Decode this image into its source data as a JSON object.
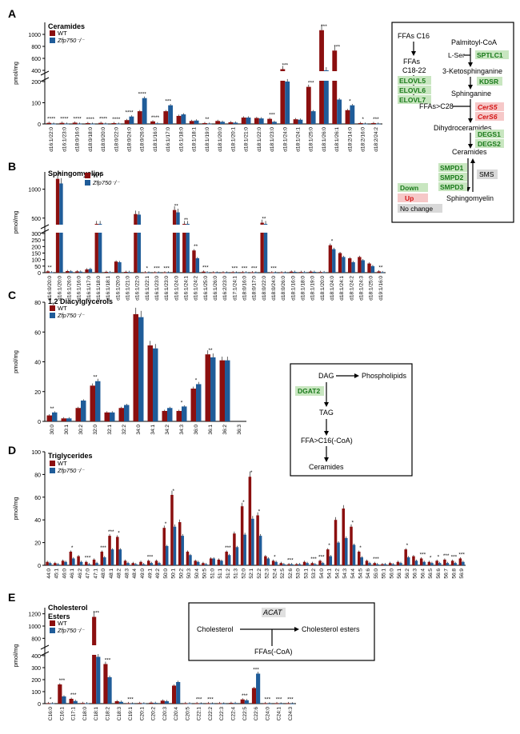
{
  "colors": {
    "wt": "#8b0f0f",
    "ko": "#1f5c99",
    "down_bg": "#c8e6c0",
    "down_fg": "#1a7a1a",
    "up_bg": "#f6c8c8",
    "up_fg": "#d41414",
    "nochange_bg": "#d9d9d9",
    "acat_bg": "#e0e0e0"
  },
  "panels": [
    {
      "letter": "A",
      "title": "Ceramides",
      "ylabel": "pmol/mg",
      "legend": [
        "WT",
        "Zfp750⁻/⁻"
      ],
      "ticks_top": [
        "1000",
        "800",
        "600",
        "400"
      ],
      "ticks_bot": [
        "200",
        "100",
        "0"
      ],
      "chart_data": {
        "type": "bar",
        "ybreak": [
          200,
          400
        ],
        "ylim": [
          0,
          1200
        ],
        "categories": [
          "d16:1/22:0",
          "d16:1/23:0",
          "d18:0/16:0",
          "d18:0/18:0",
          "d18:0/20:0",
          "d18:0/22:0",
          "d18:0/24:0",
          "d18:0/26:0",
          "d18:1/16:0",
          "d16:1/17:0",
          "d16:1/18:0",
          "d18:1/18:1",
          "d18:1/19:0",
          "d18:1/20:0",
          "d18:1/20:1",
          "d18:1/21:0",
          "d18:1/22:0",
          "d18:1/23:0",
          "d18:1/24:0",
          "d18:1/24:1",
          "d18:1/25:0",
          "d18:1/26:0",
          "d18:1/26:1",
          "d18:2/14:0",
          "d18:2/16:0",
          "d18:2/24:2"
        ],
        "series": [
          {
            "name": "WT",
            "values": [
              5,
              5,
              6,
              4,
              5,
              4,
              18,
              60,
              12,
              60,
              38,
              14,
              4,
              14,
              8,
              30,
              28,
              24,
              420,
              22,
              175,
              1070,
              730,
              65,
              4,
              4
            ]
          },
          {
            "name": "Zfp750⁻/⁻",
            "values": [
              1,
              1,
              1,
              1,
              1,
              1,
              35,
              122,
              3,
              88,
              45,
              16,
              1,
              10,
              6,
              30,
              26,
              10,
              200,
              20,
              60,
              380,
              115,
              88,
              1,
              1
            ]
          }
        ],
        "annotations": [
          "****",
          "****",
          "****",
          "****",
          "****",
          "****",
          "****",
          "****",
          "****",
          "***",
          "",
          "",
          "**",
          "",
          "",
          "",
          "",
          "***",
          "***",
          "",
          "***",
          "***",
          "***",
          "*",
          "*",
          "***"
        ]
      }
    },
    {
      "letter": "B",
      "title": "Sphingomyelins",
      "ylabel": "pmol/mg",
      "legend": [
        "WT",
        "Zfp750⁻/⁻"
      ],
      "ticks_top": [
        "1000",
        "500"
      ],
      "ticks_bot": [
        "300",
        "250",
        "200",
        "150",
        "100",
        "50",
        "0"
      ],
      "chart_data": {
        "type": "bar",
        "ybreak": [
          300,
          400
        ],
        "ylim": [
          0,
          1300
        ],
        "categories": [
          "d16:0/20:0",
          "d16:1/20:0",
          "d16:1/26:0",
          "d16:1/16:0",
          "d16:1/17:0",
          "d16:1/18:0",
          "d16:1/18:1",
          "d16:1/20:0",
          "d16:1/21:0",
          "d16:1/22:0",
          "d16:1/22:1",
          "d16:1/23:0",
          "d16:1/23:0",
          "d16:1/24:0",
          "d16:1/24:1",
          "d16:1/24:2",
          "d16:1/25:0",
          "d16:1/26:0",
          "d16:2/23:0",
          "d17:1/24:1",
          "d18:0/16:0",
          "d18:0/17:0",
          "d18:0/22:0",
          "d18:0/24:0",
          "d18:0/26:0",
          "d18:1/16:0",
          "d18:1/18:0",
          "d18:1/19:0",
          "d18:1/20:0",
          "d18:1/24:0",
          "d18:1/24:1",
          "d18:1/24:2",
          "d18:1/24:3",
          "d18:1/25:0",
          "d19:1/16:0"
        ],
        "series": [
          {
            "name": "WT",
            "values": [
              10,
              1180,
              12,
              10,
              25,
              370,
              6,
              85,
              6,
              570,
              3,
              2,
              2,
              640,
              350,
              170,
              8,
              2,
              2,
              4,
              4,
              3,
              420,
              3,
              2,
              8,
              5,
              8,
              5,
              210,
              150,
              110,
              120,
              70,
              10
            ]
          },
          {
            "name": "Zfp750⁻/⁻",
            "values": [
              3,
              1100,
              10,
              8,
              28,
              390,
              4,
              80,
              5,
              560,
              1,
              1,
              1,
              600,
              320,
              110,
              3,
              1,
              1,
              1,
              2,
              1,
              390,
              1,
              1,
              6,
              4,
              6,
              4,
              180,
              120,
              80,
              95,
              50,
              4
            ]
          }
        ],
        "annotations": [
          "**",
          "*",
          "",
          "",
          "",
          "",
          "",
          "",
          "",
          "",
          "*",
          "***",
          "***",
          "**",
          "**",
          "**",
          "***",
          "",
          "",
          "***",
          "***",
          "***",
          "**",
          "***",
          "",
          "",
          "",
          "",
          "",
          "*",
          "",
          "",
          "",
          "",
          "**"
        ]
      }
    },
    {
      "letter": "C",
      "title": "1,2 Diacylglycerols",
      "ylabel": "pmol/mg",
      "legend": [
        "WT",
        "Zfp750⁻/⁻"
      ],
      "ticks": [
        "80",
        "60",
        "40",
        "20",
        "0"
      ],
      "chart_data": {
        "type": "bar",
        "ylim": [
          0,
          80
        ],
        "categories": [
          "30:0",
          "30:1",
          "30:2",
          "32:0",
          "32:1",
          "32:2",
          "34:0",
          "34:1",
          "34:2",
          "34:3",
          "36:0",
          "36:1",
          "36:2",
          "36:3"
        ],
        "series": [
          {
            "name": "WT",
            "values": [
              4,
              2,
              9,
              24,
              6,
              9,
              72,
              51,
              7,
              7,
              22,
              45,
              41,
              0
            ]
          },
          {
            "name": "Zfp750⁻/⁻",
            "values": [
              6,
              2,
              14,
              27,
              6,
              11,
              70,
              49,
              9,
              10,
              25,
              43,
              41,
              0
            ]
          }
        ],
        "annotations": [
          "**",
          "",
          "",
          "**",
          "",
          "",
          "",
          "",
          "",
          "*",
          "*",
          "**",
          "",
          ""
        ]
      }
    },
    {
      "letter": "D",
      "title": "Triglycerides",
      "ylabel": "pmol/mg",
      "legend": [
        "WT",
        "Zfp750⁻/⁻"
      ],
      "ticks": [
        "100",
        "80",
        "60",
        "40",
        "20",
        "0"
      ],
      "chart_data": {
        "type": "bar",
        "ylim": [
          0,
          100
        ],
        "categories": [
          "44:0",
          "45:1",
          "46:0",
          "46:1",
          "46:2",
          "47:0",
          "47:1",
          "48:0",
          "48:1",
          "48:2",
          "48:3",
          "48:4",
          "49:0",
          "49:1",
          "49:2",
          "50:0",
          "50:1",
          "50:2",
          "50:3",
          "50:4",
          "50:5",
          "51:0",
          "51:1",
          "51:2",
          "51:3",
          "52:0",
          "52:1",
          "52:2",
          "52:3",
          "52:4",
          "52:5",
          "52:6",
          "53:0",
          "53:1",
          "53:2",
          "54:0",
          "54:1",
          "54:2",
          "54:3",
          "54:4",
          "54:5",
          "54:6",
          "55:0",
          "55:1",
          "56:0",
          "56:1",
          "56:2",
          "56:3",
          "56:4",
          "56:5",
          "56:6",
          "56:7",
          "56:8",
          "56:9"
        ],
        "series": [
          {
            "name": "WT",
            "values": [
              3,
              2,
              4,
              12,
              8,
              3,
              5,
              12,
              26,
              25,
              4,
              2,
              3,
              4,
              4,
              33,
              62,
              38,
              12,
              4,
              2,
              6,
              5,
              12,
              28,
              52,
              78,
              44,
              8,
              4,
              2,
              1,
              1,
              3,
              2,
              4,
              14,
              40,
              50,
              34,
              12,
              4,
              2,
              1,
              2,
              3,
              14,
              8,
              6,
              3,
              4,
              5,
              4,
              6
            ]
          },
          {
            "name": "Zfp750⁻/⁻",
            "values": [
              2,
              1,
              3,
              6,
              3,
              1,
              2,
              7,
              14,
              14,
              2,
              1,
              1,
              2,
              2,
              17,
              34,
              26,
              9,
              3,
              1,
              6,
              4,
              9,
              16,
              27,
              41,
              26,
              6,
              3,
              1,
              1,
              1,
              2,
              1,
              2,
              8,
              20,
              24,
              18,
              7,
              2,
              1,
              1,
              1,
              2,
              7,
              4,
              3,
              2,
              2,
              2,
              2,
              3
            ]
          }
        ],
        "annotations": [
          "",
          "",
          "",
          "*",
          "",
          "***",
          "",
          "***",
          "***",
          "*",
          "",
          "",
          "",
          "***",
          "",
          "*",
          "*",
          "",
          "",
          "",
          "",
          "",
          "",
          "***",
          "",
          "*",
          "*",
          "*",
          "",
          "*",
          "",
          "***",
          "",
          "",
          "***",
          "***",
          "*",
          "",
          "",
          "*",
          "*",
          "",
          "***",
          "",
          "",
          "",
          "*",
          "",
          "***",
          "*",
          "*",
          "***",
          "***",
          "***"
        ]
      }
    },
    {
      "letter": "E",
      "title": "Cholesterol\nEsters",
      "ylabel": "pmol/mg",
      "legend": [
        "WT",
        "Zfp750⁻/⁻"
      ],
      "ticks_top": [
        "1200",
        "1000",
        "800"
      ],
      "ticks_bot": [
        "400",
        "300",
        "200",
        "100",
        "0"
      ],
      "chart_data": {
        "type": "bar",
        "ybreak": [
          400,
          700
        ],
        "ylim": [
          0,
          1300
        ],
        "categories": [
          "C16:0",
          "C16:1",
          "C17:1",
          "C18:0",
          "C18:1",
          "C18:2",
          "C18:3",
          "C19:1",
          "C20:1",
          "C20:2",
          "C20:3",
          "C20:4",
          "C20:5",
          "C22:1",
          "C22:2",
          "C22:3",
          "C22:4",
          "C22:5",
          "C22:6",
          "C24:0",
          "C24:1",
          "C24:3"
        ],
        "series": [
          {
            "name": "WT",
            "values": [
              4,
              160,
              40,
              5,
              1150,
              330,
              20,
              4,
              5,
              8,
              25,
              150,
              4,
              4,
              4,
              4,
              6,
              35,
              130,
              4,
              4,
              4
            ]
          },
          {
            "name": "Zfp750⁻/⁻",
            "values": [
              2,
              60,
              22,
              3,
              390,
              220,
              15,
              1,
              2,
              6,
              20,
              180,
              2,
              1,
              1,
              1,
              5,
              28,
              250,
              1,
              1,
              1
            ]
          }
        ],
        "annotations": [
          "*",
          "***",
          "***",
          "",
          "***",
          "***",
          "",
          "***",
          "",
          "",
          "",
          "",
          "",
          "***",
          "***",
          "",
          "",
          "***",
          "***",
          "***",
          "***",
          "***"
        ]
      }
    }
  ],
  "diagram_sphingo": {
    "nodes": [
      "FFAs C16",
      "Palmitoyl-CoA",
      "L-Ser",
      "FFAs",
      "C18-22",
      "3-Ketosphinganine",
      "Sphinganine",
      "FFAs>C28",
      "Dihydroceramides",
      "Ceramides",
      "Sphingomyelin"
    ],
    "enzymes_down": [
      "SPTLC1",
      "ELOVL5",
      "ELOVL6",
      "ELOVL7",
      "KDSR",
      "DEGS1",
      "DEGS2",
      "SMPD1",
      "SMPD2",
      "SMPD3"
    ],
    "enzymes_up": [
      "CerS5",
      "CerS6"
    ],
    "nochange": [
      "SMS"
    ],
    "legend": [
      "Down",
      "Up",
      "No change"
    ]
  },
  "diagram_dag": {
    "nodes": [
      "DAG",
      "Phospholipids",
      "TAG",
      "FFA>C16(-CoA)",
      "Ceramides"
    ],
    "enzyme_down": "DGAT2"
  },
  "diagram_chol": {
    "nodes": [
      "Cholesterol",
      "Cholesterol esters",
      "FFAs(-CoA)"
    ],
    "enzyme": "ACAT"
  }
}
